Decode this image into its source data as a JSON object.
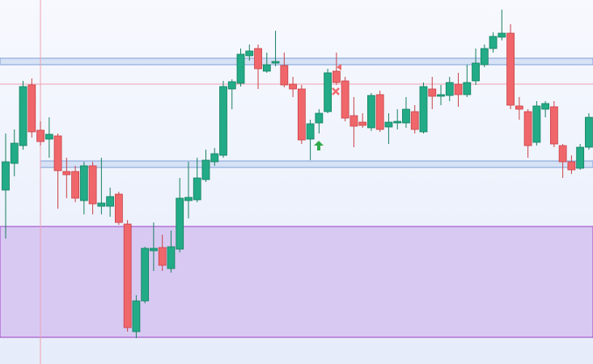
{
  "chart_data": {
    "type": "candlestick",
    "ylim": [
      0,
      450
    ],
    "up_color": "#22ab86",
    "down_color": "#f0676b",
    "open": [
      215,
      248,
      270,
      345,
      289,
      278,
      282,
      238,
      238,
      202,
      245,
      195,
      195,
      210,
      173,
      40,
      78,
      140,
      144,
      118,
      142,
      202,
      203,
      228,
      250,
      258,
      340,
      347,
      381,
      390,
      362,
      372,
      369,
      346,
      340,
      278,
      298,
      312,
      362,
      350,
      307,
      299,
      292,
      333,
      293,
      298,
      298,
      312,
      287,
      340,
      331,
      332,
      346,
      333,
      350,
      370,
      390,
      404,
      409,
      319,
      312,
      274,
      315,
      318,
      270,
      250,
      242,
      268
    ],
    "high": [
      285,
      290,
      350,
      353,
      300,
      305,
      285,
      255,
      245,
      250,
      250,
      255,
      218,
      213,
      178,
      85,
      145,
      175,
      160,
      165,
      230,
      250,
      255,
      265,
      267,
      350,
      352,
      390,
      395,
      395,
      385,
      412,
      385,
      355,
      345,
      302,
      315,
      365,
      385,
      355,
      330,
      310,
      335,
      338,
      310,
      315,
      330,
      320,
      348,
      355,
      345,
      355,
      360,
      370,
      390,
      395,
      410,
      438,
      420,
      330,
      315,
      325,
      325,
      325,
      272,
      258,
      272,
      310
    ],
    "low": [
      155,
      232,
      265,
      280,
      270,
      255,
      192,
      205,
      200,
      185,
      185,
      185,
      182,
      172,
      40,
      32,
      75,
      115,
      115,
      113,
      138,
      180,
      200,
      225,
      245,
      255,
      315,
      343,
      375,
      340,
      360,
      368,
      342,
      330,
      272,
      252,
      285,
      310,
      345,
      300,
      268,
      292,
      288,
      287,
      272,
      290,
      292,
      285,
      285,
      315,
      320,
      325,
      318,
      330,
      345,
      367,
      385,
      400,
      315,
      302,
      255,
      270,
      305,
      268,
      230,
      235,
      240,
      265
    ],
    "close": [
      250,
      273,
      343,
      287,
      275,
      284,
      239,
      234,
      205,
      245,
      198,
      199,
      207,
      175,
      45,
      78,
      143,
      143,
      122,
      145,
      205,
      206,
      230,
      252,
      260,
      343,
      349,
      383,
      387,
      365,
      370,
      374,
      345,
      340,
      277,
      297,
      310,
      360,
      348,
      304,
      294,
      295,
      332,
      290,
      299,
      300,
      315,
      290,
      343,
      331,
      333,
      348,
      333,
      348,
      372,
      390,
      405,
      409,
      320,
      315,
      270,
      319,
      322,
      272,
      250,
      240,
      268,
      305
    ],
    "zones": [
      {
        "range": [
          33,
          170
        ],
        "color": "#d8c9f3",
        "border": "#9b3fc4"
      },
      {
        "range": [
          370,
          378
        ],
        "color": "#d6e2f5",
        "border": "#7f9fd6"
      },
      {
        "range": [
          243,
          251
        ],
        "color": "#d6e2f5",
        "border": "#7f9fd6"
      }
    ],
    "hline": 346,
    "hline_color": "#f0a0b0"
  }
}
